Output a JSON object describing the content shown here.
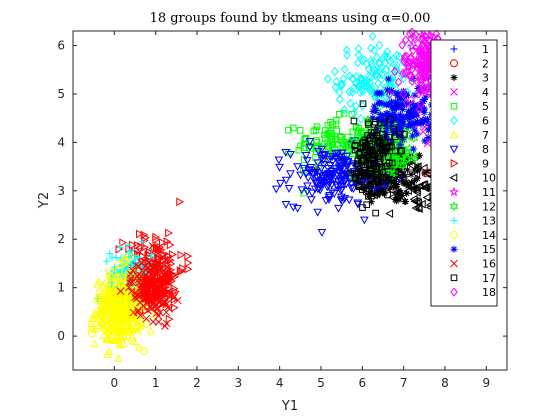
{
  "chart_data": {
    "type": "scatter",
    "title": "18 groups found by tkmeans using α=0.00",
    "xlabel": "Y1",
    "ylabel": "Y2",
    "xlim": [
      -1,
      9.5
    ],
    "ylim": [
      -0.7,
      6.3
    ],
    "xticks": [
      0,
      1,
      2,
      3,
      4,
      5,
      6,
      7,
      8,
      9
    ],
    "yticks": [
      0,
      1,
      2,
      3,
      4,
      5,
      6
    ],
    "grid": false,
    "legend_position": "right",
    "series": [
      {
        "name": "1",
        "marker": "plus",
        "color": "#0000ff",
        "cx": 6.2,
        "cy": 3.8,
        "sx": 0.1,
        "sy": 0.1,
        "n": 4
      },
      {
        "name": "2",
        "marker": "circle",
        "color": "#ff0000",
        "cx": 7.9,
        "cy": 3.3,
        "sx": 0.2,
        "sy": 0.15,
        "n": 20
      },
      {
        "name": "3",
        "marker": "asterisk",
        "color": "#000000",
        "cx": 6.7,
        "cy": 3.3,
        "sx": 0.45,
        "sy": 0.3,
        "n": 140
      },
      {
        "name": "4",
        "marker": "x",
        "color": "#ff00ff",
        "cx": 7.7,
        "cy": 4.3,
        "sx": 0.2,
        "sy": 0.2,
        "n": 15
      },
      {
        "name": "5",
        "marker": "square",
        "color": "#00ff00",
        "cx": 5.2,
        "cy": 4.0,
        "sx": 0.4,
        "sy": 0.25,
        "n": 90
      },
      {
        "name": "6",
        "marker": "diamond",
        "color": "#00ffff",
        "cx": 6.3,
        "cy": 5.3,
        "sx": 0.45,
        "sy": 0.35,
        "n": 130
      },
      {
        "name": "7",
        "marker": "triangle",
        "color": "#ffff00",
        "cx": 0.1,
        "cy": 0.5,
        "sx": 0.28,
        "sy": 0.35,
        "n": 220
      },
      {
        "name": "8",
        "marker": "triangle-down",
        "color": "#0000ff",
        "cx": 5.3,
        "cy": 3.3,
        "sx": 0.55,
        "sy": 0.3,
        "n": 180
      },
      {
        "name": "9",
        "marker": "triangle-right",
        "color": "#ff0000",
        "cx": 1.0,
        "cy": 1.4,
        "sx": 0.35,
        "sy": 0.4,
        "n": 140
      },
      {
        "name": "10",
        "marker": "triangle-left",
        "color": "#000000",
        "cx": 7.4,
        "cy": 3.0,
        "sx": 0.4,
        "sy": 0.3,
        "n": 60
      },
      {
        "name": "11",
        "marker": "pentagram",
        "color": "#ff00ff",
        "cx": 7.8,
        "cy": 5.7,
        "sx": 0.3,
        "sy": 0.25,
        "n": 60
      },
      {
        "name": "12",
        "marker": "hexagram",
        "color": "#00ff00",
        "cx": 6.6,
        "cy": 4.0,
        "sx": 0.4,
        "sy": 0.3,
        "n": 150
      },
      {
        "name": "13",
        "marker": "plus",
        "color": "#00ffff",
        "cx": 0.4,
        "cy": 1.3,
        "sx": 0.25,
        "sy": 0.25,
        "n": 120
      },
      {
        "name": "14",
        "marker": "circle",
        "color": "#ffff00",
        "cx": 0.2,
        "cy": 0.7,
        "sx": 0.25,
        "sy": 0.35,
        "n": 180
      },
      {
        "name": "15",
        "marker": "asterisk",
        "color": "#0000ff",
        "cx": 7.0,
        "cy": 4.6,
        "sx": 0.4,
        "sy": 0.3,
        "n": 170
      },
      {
        "name": "16",
        "marker": "x",
        "color": "#ff0000",
        "cx": 0.9,
        "cy": 1.0,
        "sx": 0.25,
        "sy": 0.3,
        "n": 200
      },
      {
        "name": "17",
        "marker": "square",
        "color": "#000000",
        "cx": 6.3,
        "cy": 3.7,
        "sx": 0.25,
        "sy": 0.4,
        "n": 160
      },
      {
        "name": "18",
        "marker": "diamond",
        "color": "#ff00ff",
        "cx": 7.6,
        "cy": 5.6,
        "sx": 0.35,
        "sy": 0.35,
        "n": 200
      }
    ]
  }
}
